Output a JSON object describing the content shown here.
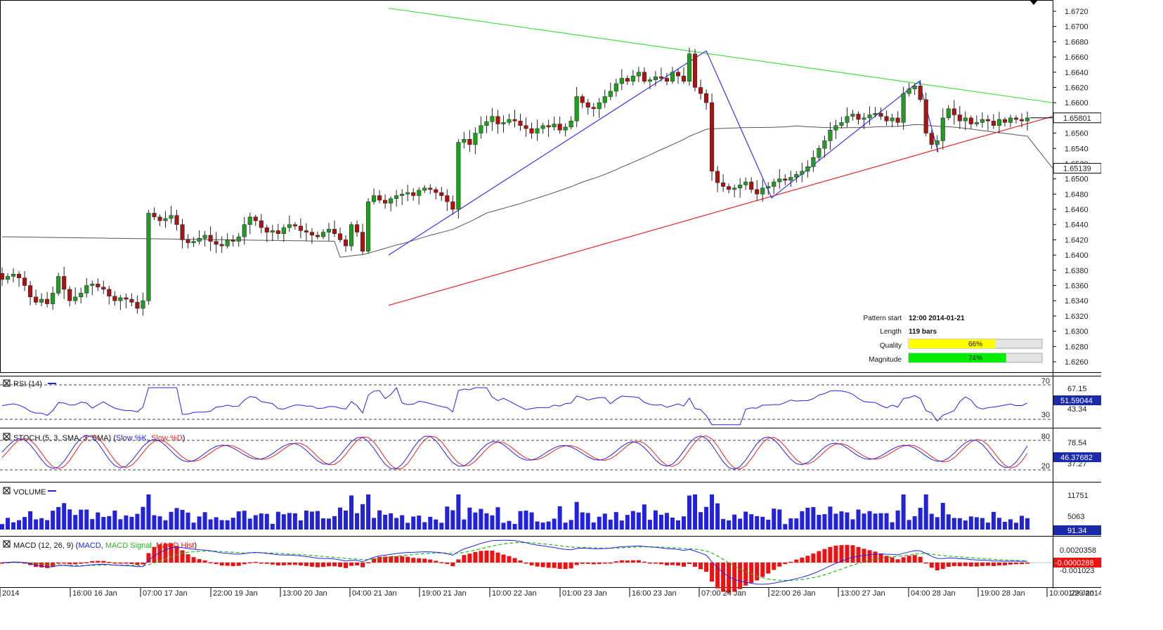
{
  "chart_data": {
    "type": "candlestick",
    "price_axis": {
      "ticks": [
        "1.6720",
        "1.6700",
        "1.6680",
        "1.6660",
        "1.6640",
        "1.6620",
        "1.6600",
        "1.6580",
        "1.6560",
        "1.6540",
        "1.6520",
        "1.6500",
        "1.6480",
        "1.6460",
        "1.6440",
        "1.6420",
        "1.6400",
        "1.6380",
        "1.6360",
        "1.6340",
        "1.6320",
        "1.6300",
        "1.6280",
        "1.6260"
      ],
      "range": [
        1.625,
        1.6725
      ],
      "current_price": "1.65801",
      "ma_value": "1.65139"
    },
    "time_axis": {
      "labels": [
        "2014",
        "16:00 16 Jan",
        "07:00 17 Jan",
        "22:00 19 Jan",
        "13:00 20 Jan",
        "04:00 21 Jan",
        "19:00 21 Jan",
        "10:00 22 Jan",
        "01:00 23 Jan",
        "16:00 23 Jan",
        "07:00 24 Jan",
        "22:00 26 Jan",
        "13:00 27 Jan",
        "04:00 28 Jan",
        "19:00 28 Jan",
        "10:00 29 Jan"
      ],
      "overlap_label": "1/29 2014"
    },
    "closes": [
      1.6368,
      1.6372,
      1.6375,
      1.637,
      1.636,
      1.6345,
      1.6338,
      1.6342,
      1.6336,
      1.635,
      1.6372,
      1.6355,
      1.634,
      1.6345,
      1.635,
      1.636,
      1.6362,
      1.6358,
      1.6355,
      1.6346,
      1.634,
      1.6344,
      1.6342,
      1.6338,
      1.633,
      1.634,
      1.6455,
      1.645,
      1.6445,
      1.6448,
      1.6452,
      1.644,
      1.642,
      1.6416,
      1.6418,
      1.6422,
      1.6426,
      1.6418,
      1.6414,
      1.6412,
      1.642,
      1.6418,
      1.6424,
      1.644,
      1.645,
      1.6445,
      1.6436,
      1.643,
      1.6432,
      1.6428,
      1.6436,
      1.644,
      1.6438,
      1.6432,
      1.643,
      1.6426,
      1.6424,
      1.643,
      1.6434,
      1.6428,
      1.642,
      1.6412,
      1.644,
      1.643,
      1.6405,
      1.647,
      1.6478,
      1.6472,
      1.6468,
      1.6474,
      1.6478,
      1.648,
      1.6482,
      1.6478,
      1.6485,
      1.6488,
      1.6486,
      1.6482,
      1.6478,
      1.647,
      1.646,
      1.6548,
      1.6552,
      1.6545,
      1.656,
      1.657,
      1.6575,
      1.6582,
      1.6572,
      1.6574,
      1.6578,
      1.6576,
      1.657,
      1.6566,
      1.656,
      1.6566,
      1.657,
      1.6568,
      1.6572,
      1.6564,
      1.6568,
      1.6576,
      1.6608,
      1.66,
      1.6594,
      1.6592,
      1.66,
      1.6608,
      1.6615,
      1.6625,
      1.6632,
      1.6628,
      1.6635,
      1.664,
      1.6628,
      1.663,
      1.6634,
      1.6632,
      1.6628,
      1.664,
      1.6635,
      1.6628,
      1.6664,
      1.662,
      1.6612,
      1.66,
      1.651,
      1.6495,
      1.649,
      1.6486,
      1.6488,
      1.6492,
      1.6496,
      1.6486,
      1.648,
      1.6488,
      1.649,
      1.6496,
      1.65,
      1.6498,
      1.6502,
      1.6506,
      1.651,
      1.6516,
      1.6528,
      1.654,
      1.655,
      1.6564,
      1.657,
      1.6574,
      1.6582,
      1.6585,
      1.6578,
      1.658,
      1.6584,
      1.6586,
      1.6582,
      1.6576,
      1.658,
      1.6574,
      1.6612,
      1.6618,
      1.6622,
      1.6604,
      1.656,
      1.6545,
      1.655,
      1.658,
      1.6592,
      1.6584,
      1.6576,
      1.658,
      1.6572,
      1.6574,
      1.6578,
      1.6576,
      1.657,
      1.6578,
      1.6574,
      1.658,
      1.6578,
      1.6576,
      1.658
    ],
    "pattern": {
      "upper_line": {
        "from": 1.6724,
        "to": 1.66
      },
      "lower_line": {
        "from": 1.6334,
        "to": 1.6582
      },
      "zigzag": [
        1.64,
        1.6668,
        1.6475,
        1.6628,
        1.6535
      ]
    },
    "info": {
      "pattern_start_label": "Pattern start",
      "pattern_start_value": "12:00 2014-01-21",
      "length_label": "Length",
      "length_value": "119 bars",
      "quality_label": "Quality",
      "quality_value": "66%",
      "quality_pct": 0.66,
      "magnitude_label": "Magnitude",
      "magnitude_value": "74%",
      "magnitude_pct": 0.74
    },
    "panels": {
      "rsi": {
        "title": "RSI (14)",
        "levels": [
          "70",
          "30"
        ],
        "scale": [
          "67.15",
          "43.34"
        ],
        "current": "51.59044"
      },
      "stoch": {
        "title": "STOCH (5, 3, SMA, 3, SMA)",
        "k_label": "Slow %K",
        "d_label": "Slow %D",
        "levels": [
          "80",
          "20"
        ],
        "scale": [
          "78.54",
          "37.27"
        ],
        "current": "46.37682"
      },
      "volume": {
        "title": "VOLUME",
        "scale": [
          "11751",
          "5063"
        ],
        "current": "91.34"
      },
      "macd": {
        "title": "MACD (12, 26, 9)",
        "macd_label": "MACD",
        "signal_label": "MACD Signal",
        "hist_label": "MACD Hist",
        "scale": [
          "0.0020358",
          "-0.001023"
        ],
        "current": "-0.0000288"
      }
    }
  },
  "colors": {
    "bull": "#1e9e1e",
    "bear": "#b01010",
    "upper_trend": "#44dd44",
    "lower_trend": "#ee2222",
    "zigzag": "#3333ff",
    "moving_average": "#555555",
    "rsi": "#2222ee",
    "stoch_k": "#2222ee",
    "stoch_d": "#ee2222",
    "volume": "#2222dd",
    "macd": "#2222ee",
    "macd_signal": "#22bb22",
    "macd_hist": "#ee1111",
    "quality_bar": "#ffff00",
    "magnitude_bar": "#00ee00",
    "tag_blue": "#1a2aa8"
  }
}
